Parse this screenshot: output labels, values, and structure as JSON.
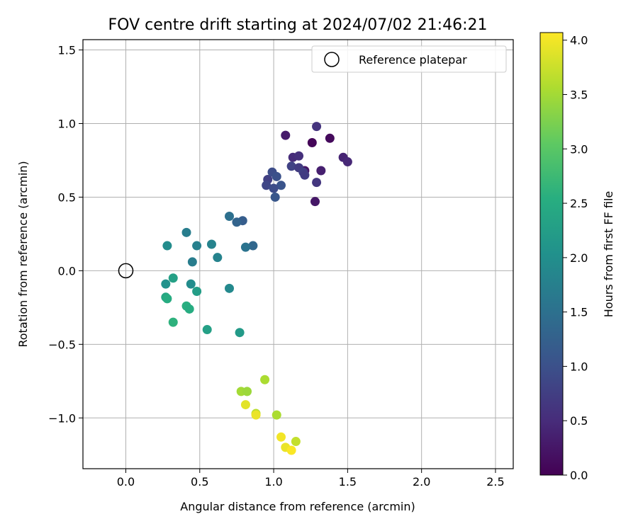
{
  "chart_data": {
    "type": "scatter",
    "title": "FOV centre drift starting at 2024/07/02 21:46:21",
    "xlabel": "Angular distance from reference (arcmin)",
    "ylabel": "Rotation from reference (arcmin)",
    "xlim": [
      -0.29,
      2.62
    ],
    "ylim": [
      -1.345,
      1.57
    ],
    "x_ticks": [
      0.0,
      0.5,
      1.0,
      1.5,
      2.0,
      2.5
    ],
    "x_tick_labels": [
      "0.0",
      "0.5",
      "1.0",
      "1.5",
      "2.0",
      "2.5"
    ],
    "y_ticks": [
      -1.0,
      -0.5,
      0.0,
      0.5,
      1.0,
      1.5
    ],
    "y_tick_labels": [
      "−1.0",
      "−0.5",
      "0.0",
      "0.5",
      "1.0",
      "1.5"
    ],
    "grid": true,
    "legend": {
      "position": "top-right",
      "entries": [
        "Reference platepar"
      ]
    },
    "reference_point": {
      "x": 0.0,
      "y": 0.0,
      "label": "Reference platepar"
    },
    "colorbar": {
      "label": "Hours from first FF file",
      "colormap": "viridis",
      "range": [
        0.0,
        4.07
      ],
      "ticks": [
        0.0,
        0.5,
        1.0,
        1.5,
        2.0,
        2.5,
        3.0,
        3.5,
        4.0
      ],
      "tick_labels": [
        "0.0",
        "0.5",
        "1.0",
        "1.5",
        "2.0",
        "2.5",
        "3.0",
        "3.5",
        "4.0"
      ]
    },
    "points": [
      {
        "x": 1.26,
        "y": 0.87,
        "t": 0.05
      },
      {
        "x": 1.38,
        "y": 0.9,
        "t": 0.1
      },
      {
        "x": 1.08,
        "y": 0.92,
        "t": 0.3
      },
      {
        "x": 1.28,
        "y": 0.47,
        "t": 0.25
      },
      {
        "x": 1.21,
        "y": 0.68,
        "t": 0.22
      },
      {
        "x": 1.47,
        "y": 0.77,
        "t": 0.4
      },
      {
        "x": 1.5,
        "y": 0.74,
        "t": 0.45
      },
      {
        "x": 1.32,
        "y": 0.68,
        "t": 0.35
      },
      {
        "x": 1.13,
        "y": 0.77,
        "t": 0.5
      },
      {
        "x": 1.29,
        "y": 0.98,
        "t": 0.6
      },
      {
        "x": 1.17,
        "y": 0.78,
        "t": 0.55
      },
      {
        "x": 1.29,
        "y": 0.6,
        "t": 0.65
      },
      {
        "x": 1.12,
        "y": 0.71,
        "t": 0.8
      },
      {
        "x": 1.17,
        "y": 0.7,
        "t": 0.7
      },
      {
        "x": 1.2,
        "y": 0.67,
        "t": 0.75
      },
      {
        "x": 1.21,
        "y": 0.65,
        "t": 0.72
      },
      {
        "x": 0.96,
        "y": 0.62,
        "t": 0.75
      },
      {
        "x": 0.95,
        "y": 0.58,
        "t": 0.85
      },
      {
        "x": 0.99,
        "y": 0.67,
        "t": 0.95
      },
      {
        "x": 1.02,
        "y": 0.64,
        "t": 1.0
      },
      {
        "x": 1.05,
        "y": 0.58,
        "t": 1.05
      },
      {
        "x": 1.0,
        "y": 0.56,
        "t": 0.95
      },
      {
        "x": 1.01,
        "y": 0.5,
        "t": 1.1
      },
      {
        "x": 0.79,
        "y": 0.34,
        "t": 1.2
      },
      {
        "x": 0.75,
        "y": 0.33,
        "t": 1.3
      },
      {
        "x": 0.86,
        "y": 0.17,
        "t": 1.35
      },
      {
        "x": 0.7,
        "y": 0.37,
        "t": 1.5
      },
      {
        "x": 0.81,
        "y": 0.16,
        "t": 1.55
      },
      {
        "x": 0.41,
        "y": 0.26,
        "t": 1.7
      },
      {
        "x": 0.48,
        "y": 0.17,
        "t": 1.75
      },
      {
        "x": 0.58,
        "y": 0.18,
        "t": 1.8
      },
      {
        "x": 0.62,
        "y": 0.09,
        "t": 1.8
      },
      {
        "x": 0.45,
        "y": 0.06,
        "t": 1.7
      },
      {
        "x": 0.28,
        "y": 0.17,
        "t": 1.95
      },
      {
        "x": 0.7,
        "y": -0.12,
        "t": 1.9
      },
      {
        "x": 0.44,
        "y": -0.09,
        "t": 1.95
      },
      {
        "x": 0.27,
        "y": -0.09,
        "t": 2.05
      },
      {
        "x": 0.32,
        "y": -0.05,
        "t": 2.3
      },
      {
        "x": 0.48,
        "y": -0.14,
        "t": 2.25
      },
      {
        "x": 0.27,
        "y": -0.18,
        "t": 2.4
      },
      {
        "x": 0.28,
        "y": -0.19,
        "t": 2.5
      },
      {
        "x": 0.41,
        "y": -0.24,
        "t": 2.55
      },
      {
        "x": 0.43,
        "y": -0.26,
        "t": 2.5
      },
      {
        "x": 0.32,
        "y": -0.35,
        "t": 2.6
      },
      {
        "x": 0.55,
        "y": -0.4,
        "t": 2.3
      },
      {
        "x": 0.77,
        "y": -0.42,
        "t": 2.2
      },
      {
        "x": 0.94,
        "y": -0.74,
        "t": 3.55
      },
      {
        "x": 0.78,
        "y": -0.82,
        "t": 3.5
      },
      {
        "x": 0.82,
        "y": -0.82,
        "t": 3.45
      },
      {
        "x": 0.81,
        "y": -0.91,
        "t": 3.9
      },
      {
        "x": 0.88,
        "y": -0.97,
        "t": 3.65
      },
      {
        "x": 0.88,
        "y": -0.98,
        "t": 3.95
      },
      {
        "x": 1.02,
        "y": -0.98,
        "t": 3.55
      },
      {
        "x": 1.05,
        "y": -1.13,
        "t": 4.0
      },
      {
        "x": 1.15,
        "y": -1.16,
        "t": 3.7
      },
      {
        "x": 1.08,
        "y": -1.2,
        "t": 3.95
      },
      {
        "x": 1.12,
        "y": -1.22,
        "t": 4.05
      }
    ]
  }
}
